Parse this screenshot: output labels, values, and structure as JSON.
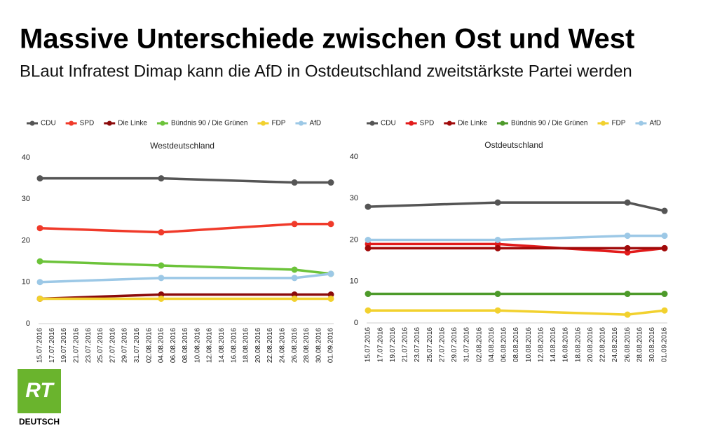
{
  "title": "Massive Unterschiede zwischen Ost und West",
  "subtitle": "BLaut Infratest Dimap kann die AfD in Ostdeutschland zweitstärkste Partei werden",
  "brand": {
    "logo": "RT",
    "name": "DEUTSCH"
  },
  "chart_data": [
    {
      "type": "line",
      "title": "Westdeutschland",
      "x": [
        "15.07.2016",
        "04.08.2016",
        "26.08.2016",
        "01.09.2016"
      ],
      "xlim": [
        "15.07.2016",
        "01.09.2016"
      ],
      "xticks": [
        "15.07.2016",
        "17.07.2016",
        "19.07.2016",
        "21.07.2016",
        "23.07.2016",
        "25.07.2016",
        "27.07.2016",
        "29.07.2016",
        "31.07.2016",
        "02.08.2016",
        "04.08.2016",
        "06.08.2016",
        "08.08.2016",
        "10.08.2016",
        "12.08.2016",
        "14.08.2016",
        "16.08.2016",
        "18.08.2016",
        "20.08.2016",
        "22.08.2016",
        "24.08.2016",
        "26.08.2016",
        "28.08.2016",
        "30.08.2016",
        "01.09.2016"
      ],
      "ylim": [
        0,
        40
      ],
      "yticks": [
        0,
        10,
        20,
        30,
        40
      ],
      "grid": false,
      "legend": "top",
      "series": [
        {
          "name": "CDU",
          "color": "#555555",
          "values": [
            35,
            35,
            34,
            34
          ]
        },
        {
          "name": "SPD",
          "color": "#f03a2a",
          "values": [
            23,
            22,
            24,
            24
          ]
        },
        {
          "name": "Die Linke",
          "color": "#8b0a0a",
          "values": [
            6,
            7,
            7,
            7
          ]
        },
        {
          "name": "Bündnis 90 / Die Grünen",
          "color": "#6cc33a",
          "values": [
            15,
            14,
            13,
            12
          ]
        },
        {
          "name": "FDP",
          "color": "#f2d12e",
          "values": [
            6,
            6,
            6,
            6
          ]
        },
        {
          "name": "AfD",
          "color": "#9cc8e6",
          "values": [
            10,
            11,
            11,
            12
          ]
        }
      ]
    },
    {
      "type": "line",
      "title": "Ostdeutschland",
      "x": [
        "15.07.2016",
        "05.08.2016",
        "26.08.2016",
        "01.09.2016"
      ],
      "xlim": [
        "15.07.2016",
        "01.09.2016"
      ],
      "xticks": [
        "15.07.2016",
        "17.07.2016",
        "19.07.2016",
        "21.07.2016",
        "23.07.2016",
        "25.07.2016",
        "27.07.2016",
        "29.07.2016",
        "31.07.2016",
        "02.08.2016",
        "04.08.2016",
        "06.08.2016",
        "08.08.2016",
        "10.08.2016",
        "12.08.2016",
        "14.08.2016",
        "16.08.2016",
        "18.08.2016",
        "20.08.2016",
        "22.08.2016",
        "24.08.2016",
        "26.08.2016",
        "28.08.2016",
        "30.08.2016",
        "01.09.2016"
      ],
      "ylim": [
        0,
        40
      ],
      "yticks": [
        0,
        10,
        20,
        30,
        40
      ],
      "grid": false,
      "legend": "top",
      "series": [
        {
          "name": "CDU",
          "color": "#555555",
          "values": [
            28,
            29,
            29,
            27
          ]
        },
        {
          "name": "SPD",
          "color": "#e21b1b",
          "values": [
            19,
            19,
            17,
            18
          ]
        },
        {
          "name": "Die Linke",
          "color": "#a00a0a",
          "values": [
            18,
            18,
            18,
            18
          ]
        },
        {
          "name": "Bündnis 90 / Die Grünen",
          "color": "#4d9a2a",
          "values": [
            7,
            7,
            7,
            7
          ]
        },
        {
          "name": "FDP",
          "color": "#f2d12e",
          "values": [
            3,
            3,
            2,
            3
          ]
        },
        {
          "name": "AfD",
          "color": "#9cc8e6",
          "values": [
            20,
            20,
            21,
            21
          ]
        }
      ]
    }
  ]
}
